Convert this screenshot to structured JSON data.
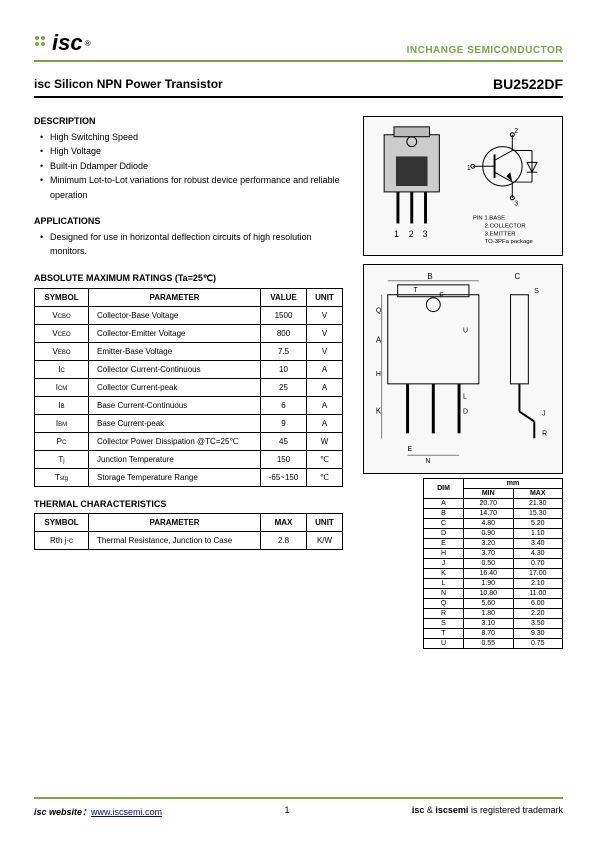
{
  "header": {
    "logo_text": "isc",
    "logo_reg": "®",
    "right": "INCHANGE SEMICONDUCTOR"
  },
  "title": {
    "left": "isc Silicon NPN Power Transistor",
    "right": "BU2522DF"
  },
  "description": {
    "heading": "DESCRIPTION",
    "items": [
      "High Switching Speed",
      "High Voltage",
      "Built-in Ddamper Ddiode",
      "Minimum Lot-to-Lot variations for robust device performance and reliable operation"
    ]
  },
  "applications": {
    "heading": "APPLICATIONS",
    "items": [
      "Designed for use in horizontal deflection circuits of high resolution monitors."
    ]
  },
  "ratings": {
    "heading": "ABSOLUTE MAXIMUM RATINGS (Ta=25℃)",
    "columns": [
      "SYMBOL",
      "PARAMETER",
      "VALUE",
      "UNIT"
    ],
    "rows": [
      [
        "V_CBO",
        "Collector-Base Voltage",
        "1500",
        "V"
      ],
      [
        "V_CEO",
        "Collector-Emitter Voltage",
        "800",
        "V"
      ],
      [
        "V_EBO",
        "Emitter-Base Voltage",
        "7.5",
        "V"
      ],
      [
        "I_C",
        "Collector Current-Continuous",
        "10",
        "A"
      ],
      [
        "I_CM",
        "Collector Current-peak",
        "25",
        "A"
      ],
      [
        "I_B",
        "Base Current-Continuous",
        "6",
        "A"
      ],
      [
        "I_BM",
        "Base Current-peak",
        "9",
        "A"
      ],
      [
        "P_C",
        "Collector Power Dissipation @TC=25℃",
        "45",
        "W"
      ],
      [
        "T_j",
        "Junction Temperature",
        "150",
        "℃"
      ],
      [
        "T_stg",
        "Storage Temperature Range",
        "-65~150",
        "℃"
      ]
    ]
  },
  "thermal": {
    "heading": "THERMAL CHARACTERISTICS",
    "columns": [
      "SYMBOL",
      "PARAMETER",
      "MAX",
      "UNIT"
    ],
    "rows": [
      [
        "Rth j-c",
        "Thermal Resistance, Junction to Case",
        "2.8",
        "K/W"
      ]
    ]
  },
  "pinout": {
    "pins_label": "1   2   3",
    "legend": [
      "PIN 1.BASE",
      "2.COLLECTOR",
      "3.EMITTER",
      "TO-3PFa package"
    ]
  },
  "dimensions": {
    "header_mm": "mm",
    "columns": [
      "DIM",
      "MIN",
      "MAX"
    ],
    "rows": [
      [
        "A",
        "20.70",
        "21.30"
      ],
      [
        "B",
        "14.70",
        "15.30"
      ],
      [
        "C",
        "4.80",
        "5.20"
      ],
      [
        "D",
        "0.90",
        "1.10"
      ],
      [
        "E",
        "3.20",
        "3.40"
      ],
      [
        "H",
        "3.70",
        "4.30"
      ],
      [
        "J",
        "0.50",
        "0.70"
      ],
      [
        "K",
        "16.40",
        "17.00"
      ],
      [
        "L",
        "1.90",
        "2.10"
      ],
      [
        "N",
        "10.80",
        "11.00"
      ],
      [
        "Q",
        "5.60",
        "6.00"
      ],
      [
        "R",
        "1.80",
        "2.20"
      ],
      [
        "S",
        "3.10",
        "3.50"
      ],
      [
        "T",
        "8.70",
        "9.30"
      ],
      [
        "U",
        "0.55",
        "0.75"
      ]
    ]
  },
  "footer": {
    "left_label": "isc website：",
    "left_link": "www.iscsemi.com",
    "page": "1",
    "right": "isc & iscsemi is registered trademark"
  }
}
